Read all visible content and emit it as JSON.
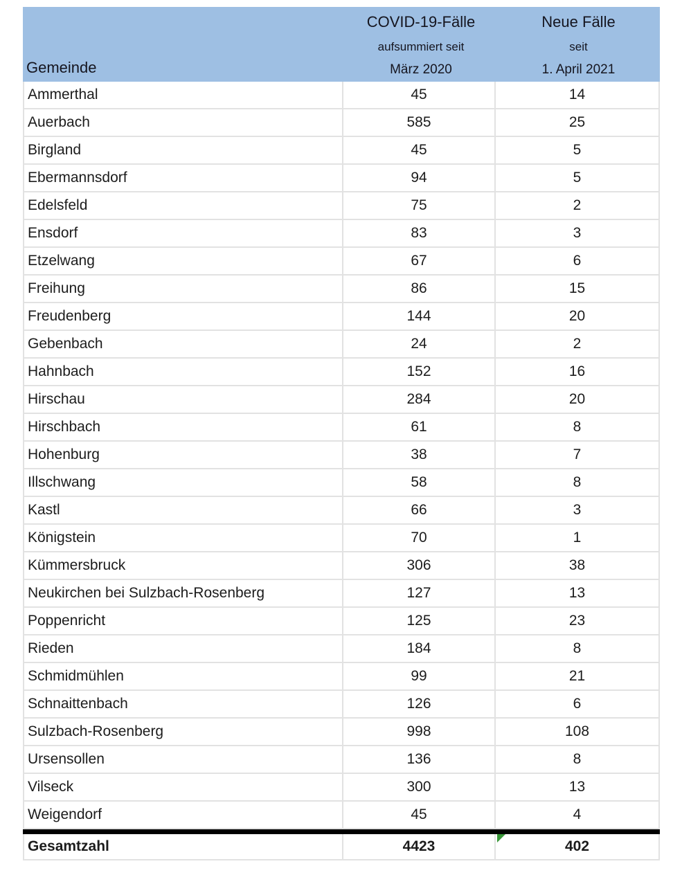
{
  "table": {
    "header": {
      "gemeinde": "Gemeinde",
      "cases": {
        "line1": "COVID-19-Fälle",
        "line2": "aufsummiert seit",
        "line3": "März 2020"
      },
      "new_cases": {
        "line1": "Neue Fälle",
        "line2": "seit",
        "line3": "1. April 2021"
      }
    },
    "rows": [
      {
        "gemeinde": "Ammerthal",
        "cases": "45",
        "new_cases": "14"
      },
      {
        "gemeinde": "Auerbach",
        "cases": "585",
        "new_cases": "25"
      },
      {
        "gemeinde": "Birgland",
        "cases": "45",
        "new_cases": "5"
      },
      {
        "gemeinde": "Ebermannsdorf",
        "cases": "94",
        "new_cases": "5"
      },
      {
        "gemeinde": "Edelsfeld",
        "cases": "75",
        "new_cases": "2"
      },
      {
        "gemeinde": "Ensdorf",
        "cases": "83",
        "new_cases": "3"
      },
      {
        "gemeinde": "Etzelwang",
        "cases": "67",
        "new_cases": "6"
      },
      {
        "gemeinde": "Freihung",
        "cases": "86",
        "new_cases": "15"
      },
      {
        "gemeinde": "Freudenberg",
        "cases": "144",
        "new_cases": "20"
      },
      {
        "gemeinde": "Gebenbach",
        "cases": "24",
        "new_cases": "2"
      },
      {
        "gemeinde": "Hahnbach",
        "cases": "152",
        "new_cases": "16"
      },
      {
        "gemeinde": "Hirschau",
        "cases": "284",
        "new_cases": "20"
      },
      {
        "gemeinde": "Hirschbach",
        "cases": "61",
        "new_cases": "8"
      },
      {
        "gemeinde": "Hohenburg",
        "cases": "38",
        "new_cases": "7"
      },
      {
        "gemeinde": "Illschwang",
        "cases": "58",
        "new_cases": "8"
      },
      {
        "gemeinde": "Kastl",
        "cases": "66",
        "new_cases": "3"
      },
      {
        "gemeinde": "Königstein",
        "cases": "70",
        "new_cases": "1"
      },
      {
        "gemeinde": "Kümmersbruck",
        "cases": "306",
        "new_cases": "38"
      },
      {
        "gemeinde": "Neukirchen bei Sulzbach-Rosenberg",
        "cases": "127",
        "new_cases": "13"
      },
      {
        "gemeinde": "Poppenricht",
        "cases": "125",
        "new_cases": "23"
      },
      {
        "gemeinde": "Rieden",
        "cases": "184",
        "new_cases": "8"
      },
      {
        "gemeinde": "Schmidmühlen",
        "cases": "99",
        "new_cases": "21"
      },
      {
        "gemeinde": "Schnaittenbach",
        "cases": "126",
        "new_cases": "6"
      },
      {
        "gemeinde": "Sulzbach-Rosenberg",
        "cases": "998",
        "new_cases": "108"
      },
      {
        "gemeinde": "Ursensollen",
        "cases": "136",
        "new_cases": "8"
      },
      {
        "gemeinde": "Vilseck",
        "cases": "300",
        "new_cases": "13"
      },
      {
        "gemeinde": "Weigendorf",
        "cases": "45",
        "new_cases": "4"
      }
    ],
    "total": {
      "label": "Gesamtzahl",
      "cases": "4423",
      "new_cases": "402"
    }
  },
  "colors": {
    "header_bg": "#9ebfe3",
    "gridline": "#e2e2e2",
    "thick_border": "#000000",
    "error_indicator_green": "#379637"
  }
}
